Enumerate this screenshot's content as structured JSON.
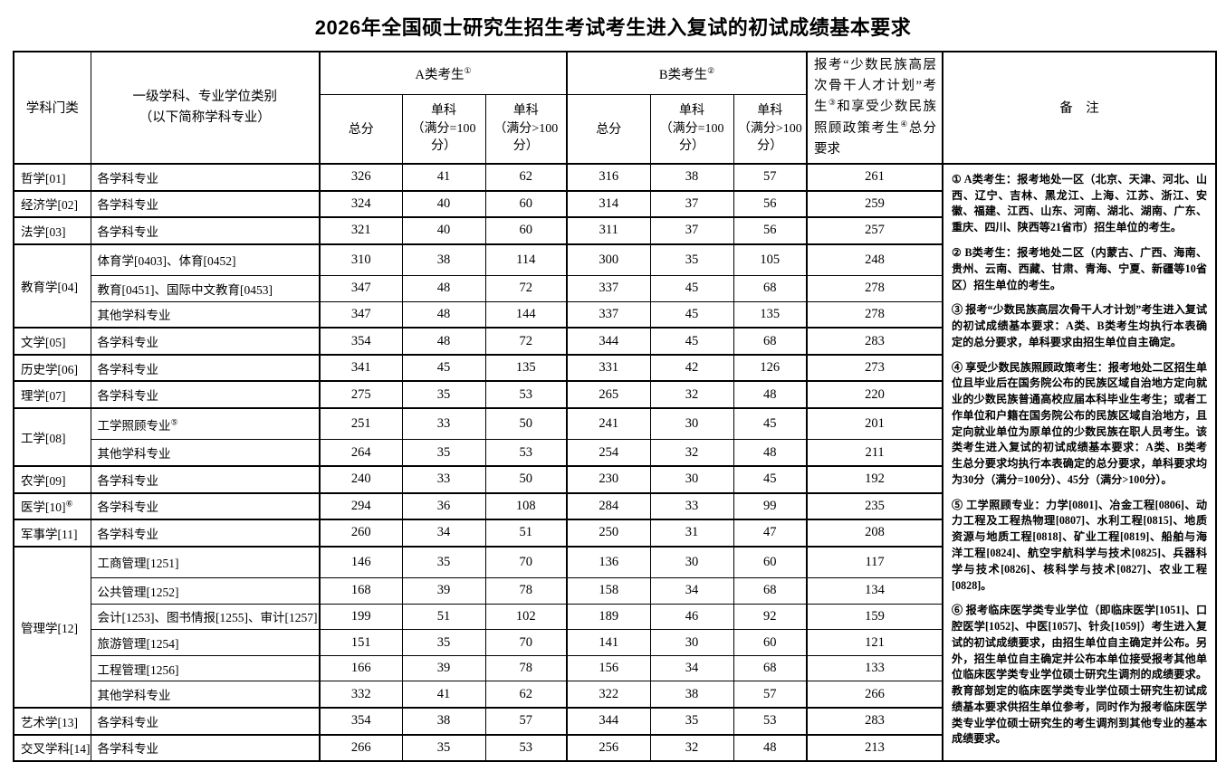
{
  "title": "2026年全国硕士研究生招生考试考生进入复试的初试成绩基本要求",
  "table": {
    "header": {
      "category": "学科门类",
      "subject": "一级学科、专业学位类别\n（以下简称学科专业）",
      "group_a_label": "A类考生",
      "group_a_sup": "①",
      "group_b_label": "B类考生",
      "group_b_sup": "②",
      "total": "总分",
      "single_eq100": "单科\n（满分=100分）",
      "single_gt100": "单科\n（满分>100分）",
      "minority_parts": {
        "t1": "报考“少数民族高层次骨干人才计划”考生",
        "s1": "③",
        "t2": "和享受少数民族照顾政策考生",
        "s2": "④",
        "t3": "总分要求"
      },
      "remarks": "备　注"
    },
    "groups": [
      {
        "category": "哲学[01]",
        "category_sup": "",
        "rows": [
          {
            "subject": "各学科专业",
            "subject_sup": "",
            "a": [
              "326",
              "41",
              "62"
            ],
            "b": [
              "316",
              "38",
              "57"
            ],
            "minority": "261"
          }
        ]
      },
      {
        "category": "经济学[02]",
        "category_sup": "",
        "rows": [
          {
            "subject": "各学科专业",
            "subject_sup": "",
            "a": [
              "324",
              "40",
              "60"
            ],
            "b": [
              "314",
              "37",
              "56"
            ],
            "minority": "259"
          }
        ]
      },
      {
        "category": "法学[03]",
        "category_sup": "",
        "rows": [
          {
            "subject": "各学科专业",
            "subject_sup": "",
            "a": [
              "321",
              "40",
              "60"
            ],
            "b": [
              "311",
              "37",
              "56"
            ],
            "minority": "257"
          }
        ]
      },
      {
        "category": "教育学[04]",
        "category_sup": "",
        "rows": [
          {
            "subject": "体育学[0403]、体育[0452]",
            "subject_sup": "",
            "a": [
              "310",
              "38",
              "114"
            ],
            "b": [
              "300",
              "35",
              "105"
            ],
            "minority": "248"
          },
          {
            "subject": "教育[0451]、国际中文教育[0453]",
            "subject_sup": "",
            "a": [
              "347",
              "48",
              "72"
            ],
            "b": [
              "337",
              "45",
              "68"
            ],
            "minority": "278"
          },
          {
            "subject": "其他学科专业",
            "subject_sup": "",
            "a": [
              "347",
              "48",
              "144"
            ],
            "b": [
              "337",
              "45",
              "135"
            ],
            "minority": "278"
          }
        ]
      },
      {
        "category": "文学[05]",
        "category_sup": "",
        "rows": [
          {
            "subject": "各学科专业",
            "subject_sup": "",
            "a": [
              "354",
              "48",
              "72"
            ],
            "b": [
              "344",
              "45",
              "68"
            ],
            "minority": "283"
          }
        ]
      },
      {
        "category": "历史学[06]",
        "category_sup": "",
        "rows": [
          {
            "subject": "各学科专业",
            "subject_sup": "",
            "a": [
              "341",
              "45",
              "135"
            ],
            "b": [
              "331",
              "42",
              "126"
            ],
            "minority": "273"
          }
        ]
      },
      {
        "category": "理学[07]",
        "category_sup": "",
        "rows": [
          {
            "subject": "各学科专业",
            "subject_sup": "",
            "a": [
              "275",
              "35",
              "53"
            ],
            "b": [
              "265",
              "32",
              "48"
            ],
            "minority": "220"
          }
        ]
      },
      {
        "category": "工学[08]",
        "category_sup": "",
        "rows": [
          {
            "subject": "工学照顾专业",
            "subject_sup": "⑤",
            "a": [
              "251",
              "33",
              "50"
            ],
            "b": [
              "241",
              "30",
              "45"
            ],
            "minority": "201"
          },
          {
            "subject": "其他学科专业",
            "subject_sup": "",
            "a": [
              "264",
              "35",
              "53"
            ],
            "b": [
              "254",
              "32",
              "48"
            ],
            "minority": "211"
          }
        ]
      },
      {
        "category": "农学[09]",
        "category_sup": "",
        "rows": [
          {
            "subject": "各学科专业",
            "subject_sup": "",
            "a": [
              "240",
              "33",
              "50"
            ],
            "b": [
              "230",
              "30",
              "45"
            ],
            "minority": "192"
          }
        ]
      },
      {
        "category": "医学[10]",
        "category_sup": "⑥",
        "rows": [
          {
            "subject": "各学科专业",
            "subject_sup": "",
            "a": [
              "294",
              "36",
              "108"
            ],
            "b": [
              "284",
              "33",
              "99"
            ],
            "minority": "235"
          }
        ]
      },
      {
        "category": "军事学[11]",
        "category_sup": "",
        "rows": [
          {
            "subject": "各学科专业",
            "subject_sup": "",
            "a": [
              "260",
              "34",
              "51"
            ],
            "b": [
              "250",
              "31",
              "47"
            ],
            "minority": "208"
          }
        ]
      },
      {
        "category": "管理学[12]",
        "category_sup": "",
        "rows": [
          {
            "subject": "工商管理[1251]",
            "subject_sup": "",
            "a": [
              "146",
              "35",
              "70"
            ],
            "b": [
              "136",
              "30",
              "60"
            ],
            "minority": "117"
          },
          {
            "subject": "公共管理[1252]",
            "subject_sup": "",
            "a": [
              "168",
              "39",
              "78"
            ],
            "b": [
              "158",
              "34",
              "68"
            ],
            "minority": "134"
          },
          {
            "subject": "会计[1253]、图书情报[1255]、审计[1257]",
            "subject_sup": "",
            "a": [
              "199",
              "51",
              "102"
            ],
            "b": [
              "189",
              "46",
              "92"
            ],
            "minority": "159"
          },
          {
            "subject": "旅游管理[1254]",
            "subject_sup": "",
            "a": [
              "151",
              "35",
              "70"
            ],
            "b": [
              "141",
              "30",
              "60"
            ],
            "minority": "121"
          },
          {
            "subject": "工程管理[1256]",
            "subject_sup": "",
            "a": [
              "166",
              "39",
              "78"
            ],
            "b": [
              "156",
              "34",
              "68"
            ],
            "minority": "133"
          },
          {
            "subject": "其他学科专业",
            "subject_sup": "",
            "a": [
              "332",
              "41",
              "62"
            ],
            "b": [
              "322",
              "38",
              "57"
            ],
            "minority": "266"
          }
        ]
      },
      {
        "category": "艺术学[13]",
        "category_sup": "",
        "rows": [
          {
            "subject": "各学科专业",
            "subject_sup": "",
            "a": [
              "354",
              "38",
              "57"
            ],
            "b": [
              "344",
              "35",
              "53"
            ],
            "minority": "283"
          }
        ]
      },
      {
        "category": "交叉学科[14]",
        "category_sup": "",
        "rows": [
          {
            "subject": "各学科专业",
            "subject_sup": "",
            "a": [
              "266",
              "35",
              "53"
            ],
            "b": [
              "256",
              "32",
              "48"
            ],
            "minority": "213"
          }
        ]
      }
    ],
    "remarks_notes": [
      "① A类考生：报考地处一区（北京、天津、河北、山西、辽宁、吉林、黑龙江、上海、江苏、浙江、安徽、福建、江西、山东、河南、湖北、湖南、广东、重庆、四川、陕西等21省市）招生单位的考生。",
      "② B类考生：报考地处二区（内蒙古、广西、海南、贵州、云南、西藏、甘肃、青海、宁夏、新疆等10省区）招生单位的考生。",
      "③ 报考“少数民族高层次骨干人才计划”考生进入复试的初试成绩基本要求：A类、B类考生均执行本表确定的总分要求，单科要求由招生单位自主确定。",
      "④ 享受少数民族照顾政策考生：报考地处二区招生单位且毕业后在国务院公布的民族区域自治地方定向就业的少数民族普通高校应届本科毕业生考生；或者工作单位和户籍在国务院公布的民族区域自治地方，且定向就业单位为原单位的少数民族在职人员考生。该类考生进入复试的初试成绩基本要求：A类、B类考生总分要求均执行本表确定的总分要求，单科要求均为30分（满分=100分）、45分（满分>100分）。",
      "⑤ 工学照顾专业：力学[0801]、冶金工程[0806]、动力工程及工程热物理[0807]、水利工程[0815]、地质资源与地质工程[0818]、矿业工程[0819]、船舶与海洋工程[0824]、航空宇航科学与技术[0825]、兵器科学与技术[0826]、核科学与技术[0827]、农业工程[0828]。",
      "⑥ 报考临床医学类专业学位（即临床医学[1051]、口腔医学[1052]、中医[1057]、针灸[1059]）考生进入复试的初试成绩要求，由招生单位自主确定并公布。另外，招生单位自主确定并公布本单位接受报考其他单位临床医学类专业学位硕士研究生调剂的成绩要求。教育部划定的临床医学类专业学位硕士研究生初试成绩基本要求供招生单位参考，同时作为报考临床医学类专业学位硕士研究生的考生调剂到其他专业的基本成绩要求。"
    ]
  }
}
